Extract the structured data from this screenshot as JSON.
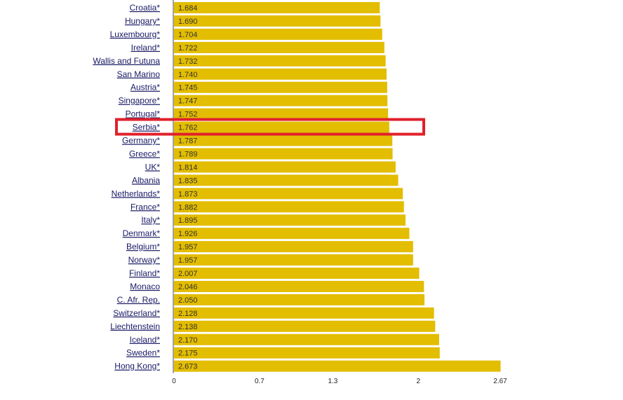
{
  "chart_data": {
    "type": "bar",
    "orientation": "horizontal",
    "categories": [
      "Croatia*",
      "Hungary*",
      "Luxembourg*",
      "Ireland*",
      "Wallis and Futuna",
      "San Marino",
      "Austria*",
      "Singapore*",
      "Portugal*",
      "Serbia*",
      "Germany*",
      "Greece*",
      "UK*",
      "Albania",
      "Netherlands*",
      "France*",
      "Italy*",
      "Denmark*",
      "Belgium*",
      "Norway*",
      "Finland*",
      "Monaco",
      "C. Afr. Rep.",
      "Switzerland*",
      "Liechtenstein",
      "Iceland*",
      "Sweden*",
      "Hong Kong*"
    ],
    "values": [
      1.684,
      1.69,
      1.704,
      1.722,
      1.732,
      1.74,
      1.745,
      1.747,
      1.752,
      1.762,
      1.787,
      1.789,
      1.814,
      1.835,
      1.873,
      1.882,
      1.895,
      1.926,
      1.957,
      1.957,
      2.007,
      2.046,
      2.05,
      2.128,
      2.138,
      2.17,
      2.175,
      2.673
    ],
    "value_labels": [
      "1.684",
      "1.690",
      "1.704",
      "1.722",
      "1.732",
      "1.740",
      "1.745",
      "1.747",
      "1.752",
      "1.762",
      "1.787",
      "1.789",
      "1.814",
      "1.835",
      "1.873",
      "1.882",
      "1.895",
      "1.926",
      "1.957",
      "1.957",
      "2.007",
      "2.046",
      "2.050",
      "2.128",
      "2.138",
      "2.170",
      "2.175",
      "2.673"
    ],
    "xlim": [
      0,
      2.67
    ],
    "x_ticks": [
      0,
      0.7,
      1.3,
      2,
      2.67
    ],
    "x_tick_labels": [
      "0",
      "0.7",
      "1.3",
      "2",
      "2.67"
    ],
    "highlighted_category": "Serbia*",
    "grid": false,
    "colors": {
      "bar": "#e3bd00",
      "highlight_box": "#e0212b",
      "label": "#1a1a66",
      "axis": "#444444"
    }
  }
}
